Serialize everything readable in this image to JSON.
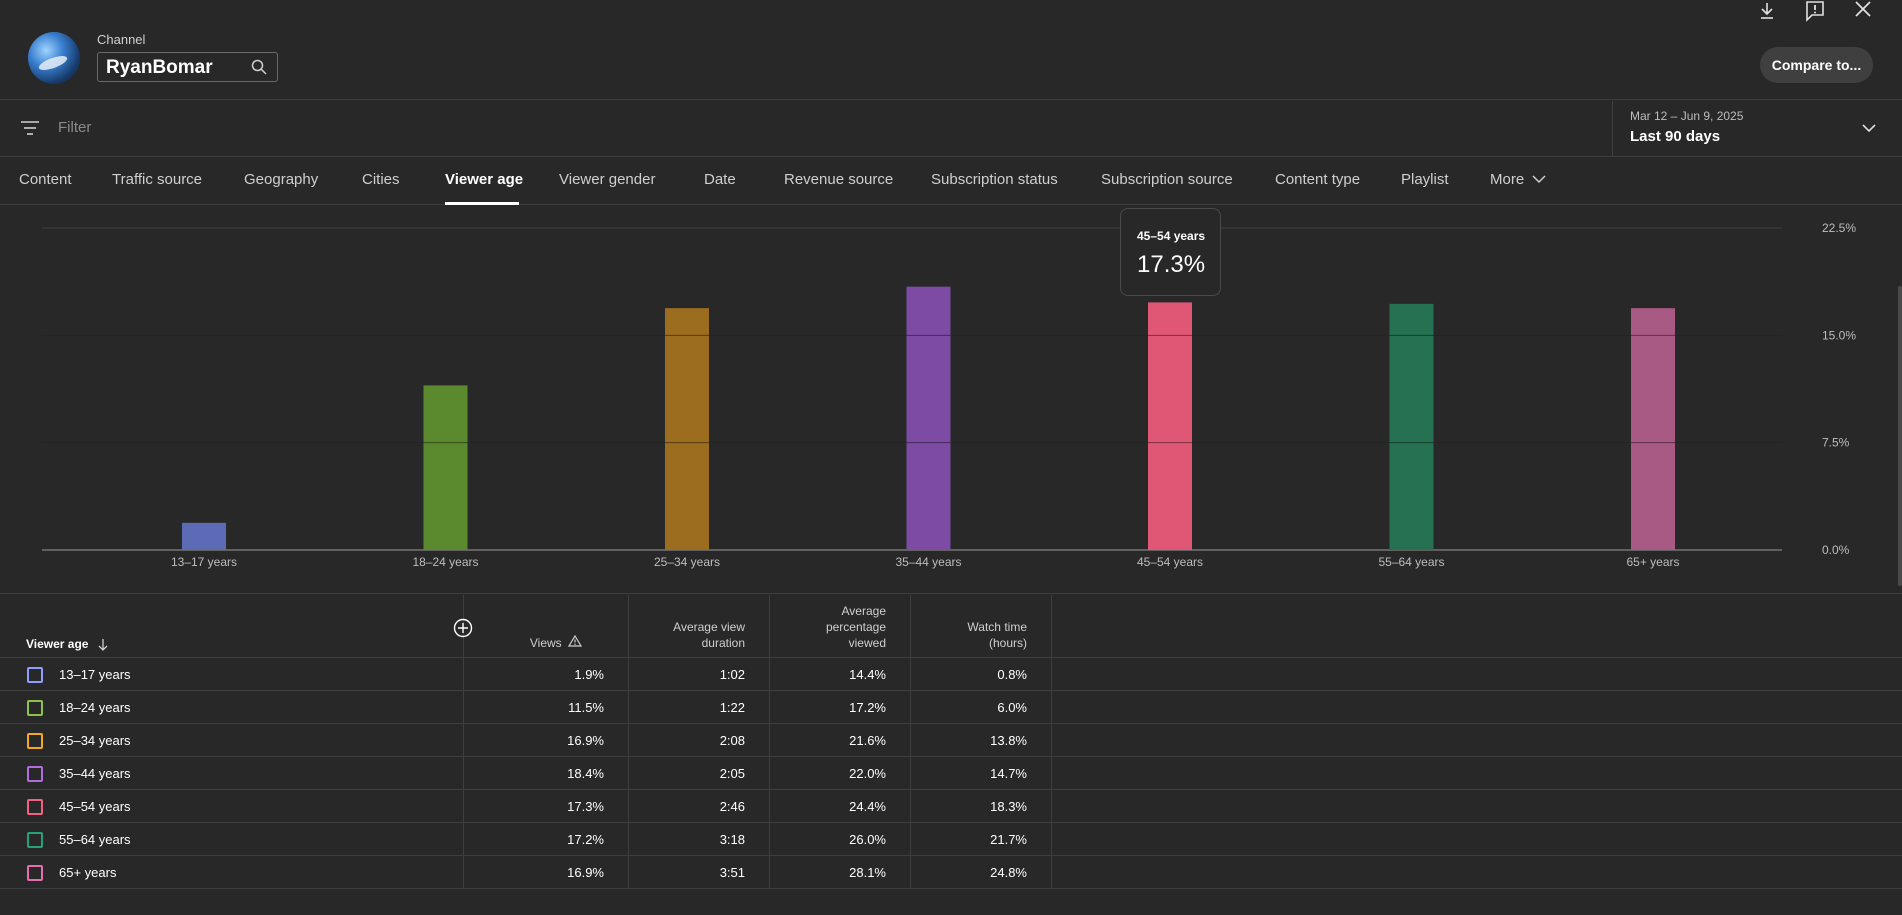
{
  "header": {
    "channel_label": "Channel",
    "channel_name": "RyanBomar",
    "compare_label": "Compare to..."
  },
  "filter": {
    "placeholder": "Filter",
    "date_range": "Mar 12 – Jun 9, 2025",
    "date_label": "Last 90 days"
  },
  "tabs": [
    {
      "label": "Content"
    },
    {
      "label": "Traffic source"
    },
    {
      "label": "Geography"
    },
    {
      "label": "Cities"
    },
    {
      "label": "Viewer age"
    },
    {
      "label": "Viewer gender"
    },
    {
      "label": "Date"
    },
    {
      "label": "Revenue source"
    },
    {
      "label": "Subscription status"
    },
    {
      "label": "Subscription source"
    },
    {
      "label": "Content type"
    },
    {
      "label": "Playlist"
    },
    {
      "label": "More"
    }
  ],
  "active_tab": "Viewer age",
  "tooltip": {
    "label": "45–54 years",
    "value": "17.3%"
  },
  "chart_data": {
    "type": "bar",
    "categories": [
      "13–17 years",
      "18–24 years",
      "25–34 years",
      "35–44 years",
      "45–54 years",
      "55–64 years",
      "65+ years"
    ],
    "values": [
      1.9,
      11.5,
      16.9,
      18.4,
      17.3,
      17.2,
      16.9
    ],
    "colors": [
      "#5c6bb5",
      "#5b8a2e",
      "#9c6d1e",
      "#7d4ba3",
      "#e05776",
      "#257152",
      "#a85a84"
    ],
    "ylim": [
      0,
      22.5
    ],
    "yticks": [
      "0.0%",
      "7.5%",
      "15.0%",
      "22.5%"
    ],
    "ytick_values": [
      0,
      7.5,
      15,
      22.5
    ],
    "grid": true
  },
  "table": {
    "headers": {
      "dimension": "Viewer age",
      "views": "Views",
      "avg_view_duration": [
        "Average view",
        "duration"
      ],
      "avg_pct_viewed": [
        "Average",
        "percentage",
        "viewed"
      ],
      "watch_time": [
        "Watch time",
        "(hours)"
      ]
    },
    "rows": [
      {
        "label": "13–17 years",
        "color": "#8c9eff",
        "views": "1.9%",
        "duration": "1:02",
        "pct": "14.4%",
        "watch": "0.8%"
      },
      {
        "label": "18–24 years",
        "color": "#8bc34a",
        "views": "11.5%",
        "duration": "1:22",
        "pct": "17.2%",
        "watch": "6.0%"
      },
      {
        "label": "25–34 years",
        "color": "#f5a623",
        "views": "16.9%",
        "duration": "2:08",
        "pct": "21.6%",
        "watch": "13.8%"
      },
      {
        "label": "35–44 years",
        "color": "#b06ce0",
        "views": "18.4%",
        "duration": "2:05",
        "pct": "22.0%",
        "watch": "14.7%"
      },
      {
        "label": "45–54 years",
        "color": "#f0627f",
        "views": "17.3%",
        "duration": "2:46",
        "pct": "24.4%",
        "watch": "18.3%"
      },
      {
        "label": "55–64 years",
        "color": "#26a078",
        "views": "17.2%",
        "duration": "3:18",
        "pct": "26.0%",
        "watch": "21.7%"
      },
      {
        "label": "65+ years",
        "color": "#e36fae",
        "views": "16.9%",
        "duration": "3:51",
        "pct": "28.1%",
        "watch": "24.8%"
      }
    ]
  }
}
